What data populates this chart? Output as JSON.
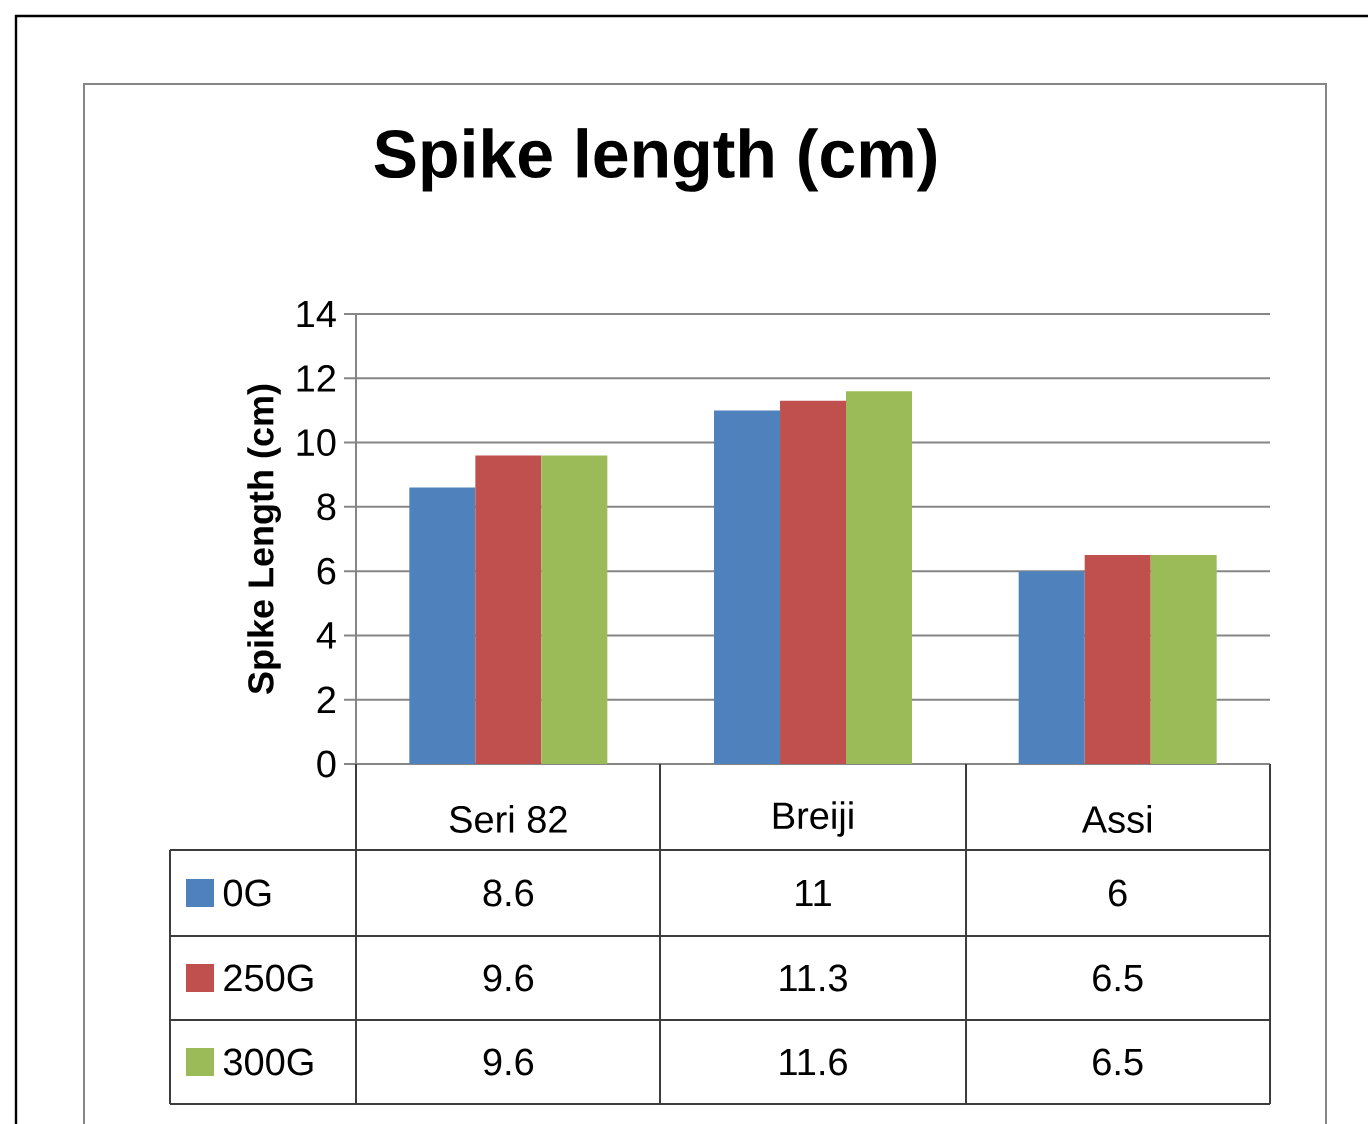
{
  "chart_data": {
    "type": "bar",
    "title": "Spike length (cm)",
    "ylabel": "Spike Length (cm)",
    "categories": [
      "Seri 82",
      "Breiji",
      "Assi"
    ],
    "series": [
      {
        "name": "0G",
        "color": "#4f81bd",
        "values": [
          8.6,
          11,
          6
        ]
      },
      {
        "name": "250G",
        "color": "#c0504d",
        "values": [
          9.6,
          11.3,
          6.5
        ]
      },
      {
        "name": "300G",
        "color": "#9bbb59",
        "values": [
          9.6,
          11.6,
          6.5
        ]
      }
    ],
    "ylim": [
      0,
      14
    ],
    "yticks": [
      0,
      2,
      4,
      6,
      8,
      10,
      12,
      14
    ],
    "grid": "y",
    "legend": "bottom",
    "data_labels": true
  }
}
